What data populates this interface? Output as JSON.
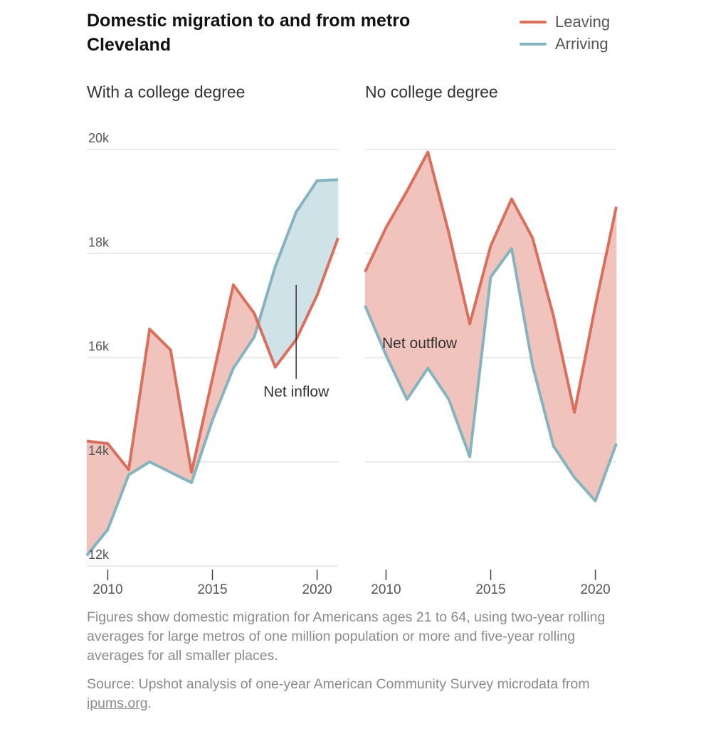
{
  "title": "Domestic migration to and from metro Cleveland",
  "legend": [
    {
      "label": "Leaving",
      "color": "#d96f5c"
    },
    {
      "label": "Arriving",
      "color": "#86b3c0"
    }
  ],
  "note": "Figures show domestic migration for Americans ages 21 to 64, using two-year rolling averages for large metros of one million population or more and five-year rolling averages for all smaller places.",
  "source": {
    "prefix": "Source: Upshot analysis of one-year American Community Survey microdata from ",
    "link": "ipums.org",
    "suffix": "."
  },
  "colors": {
    "leaving": "#d96f5c",
    "arriving": "#86b3c0",
    "outflow_fill": "#f0c3bc",
    "inflow_fill": "#cfe2e7",
    "grid": "#e3e3e3"
  },
  "chart_data": [
    {
      "type": "line",
      "title": "With a college degree",
      "x": [
        2009,
        2010,
        2011,
        2012,
        2013,
        2014,
        2015,
        2016,
        2017,
        2018,
        2019,
        2020,
        2021
      ],
      "series": [
        {
          "name": "Leaving",
          "values": [
            14400,
            14350,
            13850,
            16550,
            16150,
            13800,
            15600,
            17400,
            16850,
            15820,
            16350,
            17200,
            18300
          ]
        },
        {
          "name": "Arriving",
          "values": [
            12200,
            12700,
            13750,
            14000,
            13800,
            13600,
            14800,
            15800,
            16400,
            17750,
            18800,
            19400,
            19420
          ]
        }
      ],
      "ylim": [
        12000,
        20000
      ],
      "yticks": [
        12000,
        14000,
        16000,
        18000,
        20000
      ],
      "ytick_labels": [
        "12k",
        "14k",
        "16k",
        "18k",
        "20k"
      ],
      "xticks": [
        2010,
        2015,
        2020
      ],
      "xtick_labels": [
        "2010",
        "2015",
        "2020"
      ],
      "annotation": {
        "text": "Net inflow",
        "x": 2019
      }
    },
    {
      "type": "line",
      "title": "No college degree",
      "x": [
        2009,
        2010,
        2011,
        2012,
        2013,
        2014,
        2015,
        2016,
        2017,
        2018,
        2019,
        2020,
        2021
      ],
      "series": [
        {
          "name": "Leaving",
          "values": [
            17650,
            18500,
            19200,
            19950,
            18400,
            16650,
            18150,
            19050,
            18300,
            16800,
            14950,
            17000,
            18900
          ]
        },
        {
          "name": "Arriving",
          "values": [
            17000,
            16050,
            15200,
            15800,
            15200,
            14100,
            17550,
            18100,
            15850,
            14300,
            13700,
            13250,
            14350
          ]
        }
      ],
      "ylim": [
        12000,
        20000
      ],
      "yticks": [
        14000,
        16000,
        18000,
        20000
      ],
      "xticks": [
        2010,
        2015,
        2020
      ],
      "xtick_labels": [
        "2010",
        "2015",
        "2020"
      ],
      "annotation": {
        "text": "Net outflow"
      }
    }
  ]
}
